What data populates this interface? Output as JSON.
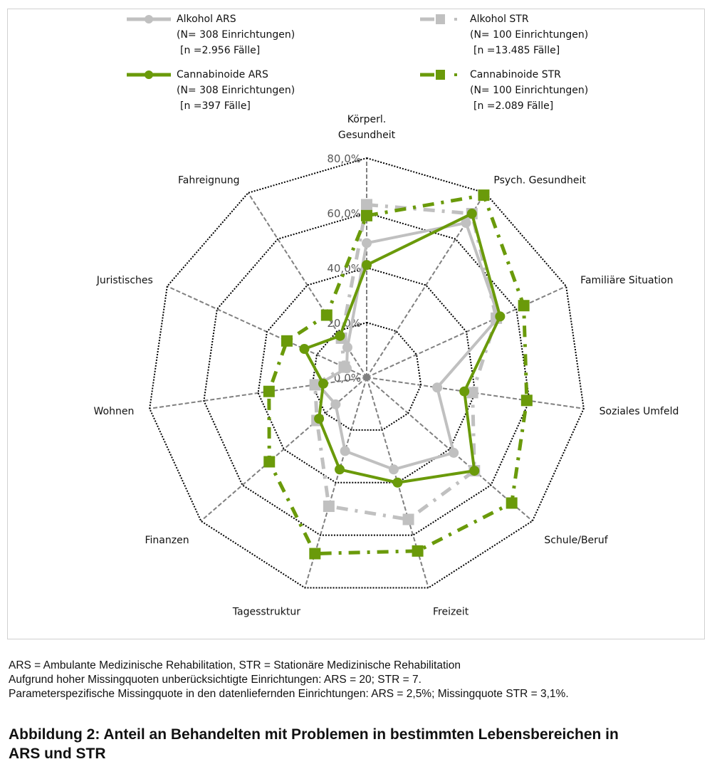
{
  "chart_data": {
    "type": "radar",
    "axes": [
      "Körperl. Gesundheit",
      "Psych. Gesundheit",
      "Familiäre Situation",
      "Soziales Umfeld",
      "Schule/Beruf",
      "Freizeit",
      "Tagesstruktur",
      "Finanzen",
      "Wohnen",
      "Juristisches",
      "Fahreignung"
    ],
    "rlim": [
      0,
      80
    ],
    "ticks": [
      "0,0%",
      "20,0%",
      "40,0%",
      "60,0%",
      "80,0%"
    ],
    "tick_values": [
      0,
      20,
      40,
      60,
      80
    ],
    "series": [
      {
        "name": "Alkohol ARS",
        "line1": "(N= 308 Einrichtungen)",
        "line2": "[n =2.956 Fälle]",
        "color": "#c0c0c0",
        "style": "solid",
        "marker": "circle",
        "values": [
          49,
          67,
          53,
          26,
          42,
          35,
          28,
          15,
          18,
          8,
          13
        ]
      },
      {
        "name": "Alkohol STR",
        "line1": "(N= 100 Einrichtungen)",
        "line2": "[n =13.485 Fälle]",
        "color": "#c0c0c0",
        "style": "dashdot",
        "marker": "square",
        "values": [
          63,
          71,
          52,
          39,
          52,
          54,
          49,
          24,
          19,
          9,
          17
        ]
      },
      {
        "name": "Cannabinoide ARS",
        "line1": "(N= 308 Einrichtungen)",
        "line2": "[n =397 Fälle]",
        "color": "#6a9a0a",
        "style": "solid",
        "marker": "circle",
        "values": [
          41,
          71,
          53.5,
          36,
          52,
          40,
          35,
          23,
          16,
          25,
          18
        ]
      },
      {
        "name": "Cannabinoide STR",
        "line1": "(N= 100 Einrichtungen)",
        "line2": "[n =2.089 Fälle]",
        "color": "#6a9a0a",
        "style": "dashdot",
        "marker": "square",
        "values": [
          59,
          79,
          63,
          59,
          70,
          66,
          67,
          47,
          36,
          32,
          27
        ]
      }
    ]
  },
  "notes": [
    "ARS = Ambulante Medizinische Rehabilitation, STR = Stationäre Medizinische Rehabilitation",
    "Aufgrund hoher Missingquoten unberücksichtigte Einrichtungen: ARS = 20; STR = 7.",
    "Parameterspezifische Missingquote in den datenliefernden Einrichtungen: ARS = 2,5%; Missingquote STR = 3,1%."
  ],
  "title": "Abbildung 2: Anteil an Behandelten mit Problemen in bestimmten Lebensbereichen in ARS und STR"
}
